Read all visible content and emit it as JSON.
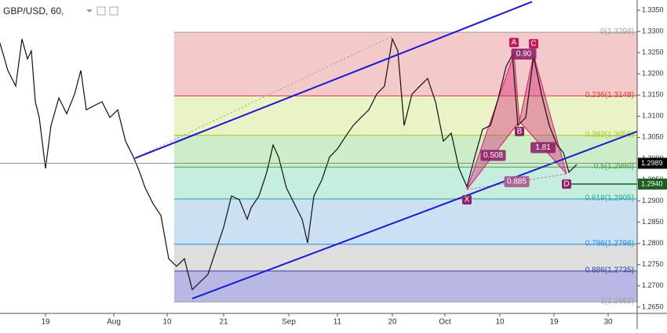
{
  "chart_data": {
    "type": "line",
    "title": "GBP/USD, 60,",
    "xlim": [
      0,
      81.2
    ],
    "ylim": [
      1.2635,
      1.3374
    ],
    "xticks": [
      {
        "value": 5.8,
        "label": "19"
      },
      {
        "value": 14.5,
        "label": "Aug"
      },
      {
        "value": 21.3,
        "label": "10"
      },
      {
        "value": 28.5,
        "label": "21"
      },
      {
        "value": 36.8,
        "label": "Sep"
      },
      {
        "value": 43,
        "label": "11"
      },
      {
        "value": 50,
        "label": "20"
      },
      {
        "value": 56.7,
        "label": "Oct"
      },
      {
        "value": 63.7,
        "label": "10"
      },
      {
        "value": 70.6,
        "label": "19"
      },
      {
        "value": 77.5,
        "label": "30"
      }
    ],
    "yticks": [
      {
        "value": 1.265,
        "label": "1.2650"
      },
      {
        "value": 1.27,
        "label": "1.2700"
      },
      {
        "value": 1.275,
        "label": "1.2750"
      },
      {
        "value": 1.28,
        "label": "1.2800"
      },
      {
        "value": 1.285,
        "label": "1.2850"
      },
      {
        "value": 1.29,
        "label": "1.2900"
      },
      {
        "value": 1.295,
        "label": "1.2950"
      },
      {
        "value": 1.3,
        "label": "1.3000"
      },
      {
        "value": 1.305,
        "label": "1.3050"
      },
      {
        "value": 1.31,
        "label": "1.3100"
      },
      {
        "value": 1.315,
        "label": "1.3150"
      },
      {
        "value": 1.32,
        "label": "1.3200"
      },
      {
        "value": 1.325,
        "label": "1.3250"
      },
      {
        "value": 1.33,
        "label": "1.3300"
      },
      {
        "value": 1.335,
        "label": "1.3350"
      }
    ],
    "series": [
      {
        "color": "#111111",
        "x": [
          0,
          1,
          2,
          2.8,
          3.5,
          4,
          4.5,
          5,
          5.8,
          6.5,
          7.5,
          8.5,
          9.5,
          10.3,
          11,
          12,
          13,
          14,
          15,
          16,
          17,
          17.8,
          18.5,
          19.5,
          20.5,
          21.5,
          22.5,
          23.5,
          24.5,
          25.5,
          26.5,
          27.5,
          28.5,
          29.5,
          30.5,
          31.5,
          32,
          33,
          34,
          34.8,
          35.5,
          36.5,
          37.5,
          38.5,
          39.2,
          40,
          41,
          42,
          43,
          44,
          45,
          46,
          47,
          48,
          49,
          50,
          50.7,
          51.5,
          52.5,
          53.5,
          54.5,
          55.5,
          56.5,
          57.5,
          58.5,
          59.5,
          60.5,
          61.5,
          62.5,
          63.5,
          64.5,
          65.3,
          66,
          67,
          68,
          69,
          70,
          71,
          71.8,
          72.5,
          73.5
        ],
        "values": [
          1.3272,
          1.3208,
          1.3171,
          1.3282,
          1.3235,
          1.3254,
          1.3134,
          1.3097,
          1.2977,
          1.3078,
          1.3143,
          1.3106,
          1.3152,
          1.3208,
          1.3115,
          1.3125,
          1.3134,
          1.3097,
          1.3115,
          1.3041,
          1.3004,
          1.2968,
          1.2931,
          1.2894,
          1.2866,
          1.2764,
          1.2746,
          1.2764,
          1.2691,
          1.2709,
          1.2727,
          1.2783,
          1.2838,
          1.2912,
          1.2903,
          1.2857,
          1.2884,
          1.2912,
          1.2968,
          1.3032,
          1.3004,
          1.2931,
          1.2894,
          1.2857,
          1.2801,
          1.2912,
          1.2949,
          1.3004,
          1.3023,
          1.3051,
          1.3078,
          1.3097,
          1.3115,
          1.3152,
          1.3171,
          1.3282,
          1.3254,
          1.3078,
          1.3152,
          1.3171,
          1.3189,
          1.3134,
          1.3041,
          1.306,
          1.2977,
          1.2934,
          1.3004,
          1.3069,
          1.3078,
          1.3143,
          1.3217,
          1.3245,
          1.3078,
          1.3097,
          1.3241,
          1.3152,
          1.3078,
          1.3032,
          1.3014,
          1.2968,
          1.2986
        ]
      }
    ],
    "fib_x": [
      22.2,
      81.2
    ],
    "fib_levels": [
      {
        "label": "0(1.3298)",
        "value": 1.3298,
        "color": "#9e9e9e",
        "fill": "#f3c9c9"
      },
      {
        "label": "0.236(1.3148)",
        "value": 1.3148,
        "color": "#e53935",
        "fill": "#e9f3c6"
      },
      {
        "label": "0.382(1.3055)",
        "value": 1.3055,
        "color": "#9ccc1c",
        "fill": "#cdedc8"
      },
      {
        "label": "0.5(1.2980)",
        "value": 1.298,
        "color": "#43a047",
        "fill": "#c6eedf"
      },
      {
        "label": "0.618(1.2905)",
        "value": 1.2905,
        "color": "#26a69a",
        "fill": "#cbe0f3"
      },
      {
        "label": "0.786(1.2798)",
        "value": 1.2798,
        "color": "#1e88e5",
        "fill": "#dedede"
      },
      {
        "label": "0.886(1.2735)",
        "value": 1.2735,
        "color": "#303f9f",
        "fill": "#b9b8e4"
      },
      {
        "label": "1(1.2662)",
        "value": 1.2662,
        "color": "#9e9e9e"
      }
    ],
    "trendlines": [
      {
        "x": [
          17.2,
          67.8
        ],
        "values": [
          1.3001,
          1.337
        ],
        "color": "#1a1ad6"
      },
      {
        "x": [
          24.5,
          81.2
        ],
        "values": [
          1.267,
          1.3064
        ],
        "color": "#1a1ad6"
      }
    ],
    "dotted_line": {
      "x": [
        17.2,
        50
      ],
      "values": [
        1.3001,
        1.3289
      ],
      "color": "#999999"
    },
    "pattern": {
      "names": [
        "X",
        "A",
        "B",
        "C",
        "D"
      ],
      "x": [
        59.5,
        65.5,
        66.2,
        68,
        72.2
      ],
      "values": [
        1.2927,
        1.3248,
        1.3088,
        1.3245,
        1.2964
      ],
      "fill": "#d81b74"
    },
    "ratios": {
      "values": [
        0.508,
        0.9,
        1.81,
        0.885
      ],
      "value_labels": [
        "0.508",
        "0.90",
        "1.81",
        "0.885"
      ]
    },
    "price_markers": [
      {
        "value": 1.2989,
        "label": "1.2989",
        "color": "#000000"
      },
      {
        "value": 1.294,
        "label": "1.2940",
        "color": "#1b5e20"
      }
    ]
  }
}
